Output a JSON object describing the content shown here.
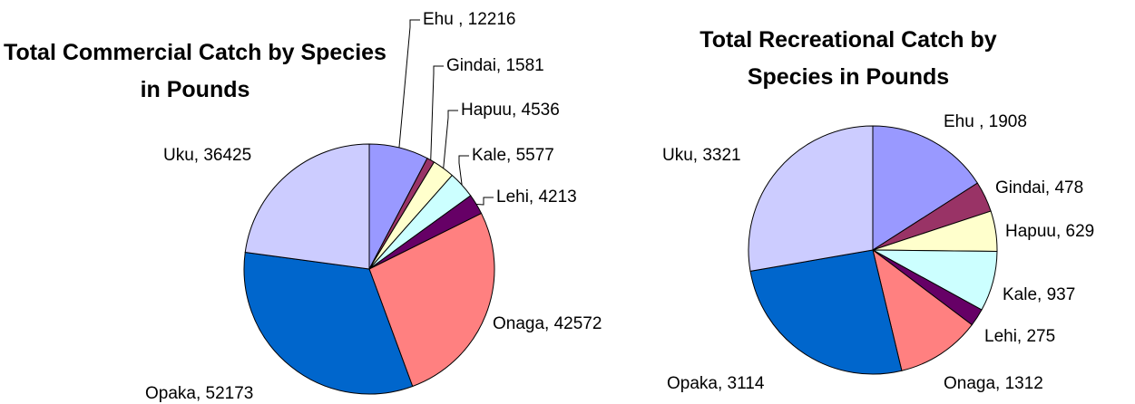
{
  "chart_data": [
    {
      "type": "pie",
      "title": "Total Commercial Catch by Species in Pounds",
      "values": [
        12216,
        1581,
        4536,
        5577,
        4213,
        42572,
        52173,
        36425
      ],
      "value_labels": [
        "Ehu , 12216",
        "Gindai, 1581",
        "Hapuu, 4536",
        "Kale, 5577",
        "Lehi, 4213",
        "Onaga, 42572",
        "Opaka, 52173",
        "Uku, 36425"
      ],
      "colors": [
        "#9999ff",
        "#993366",
        "#ffffcc",
        "#ccffff",
        "#660066",
        "#ff8080",
        "#0066cc",
        "#ccccff"
      ]
    },
    {
      "type": "pie",
      "title": "Total Recreational Catch by Species in Pounds",
      "values": [
        1908,
        478,
        629,
        937,
        275,
        1312,
        3114,
        3321
      ],
      "value_labels": [
        "Ehu , 1908",
        "Gindai, 478",
        "Hapuu, 629",
        "Kale, 937",
        "Lehi, 275",
        "Onaga, 1312",
        "Opaka, 3114",
        "Uku, 3321"
      ],
      "colors": [
        "#9999ff",
        "#993366",
        "#ffffcc",
        "#ccffff",
        "#660066",
        "#ff8080",
        "#0066cc",
        "#ccccff"
      ]
    }
  ]
}
